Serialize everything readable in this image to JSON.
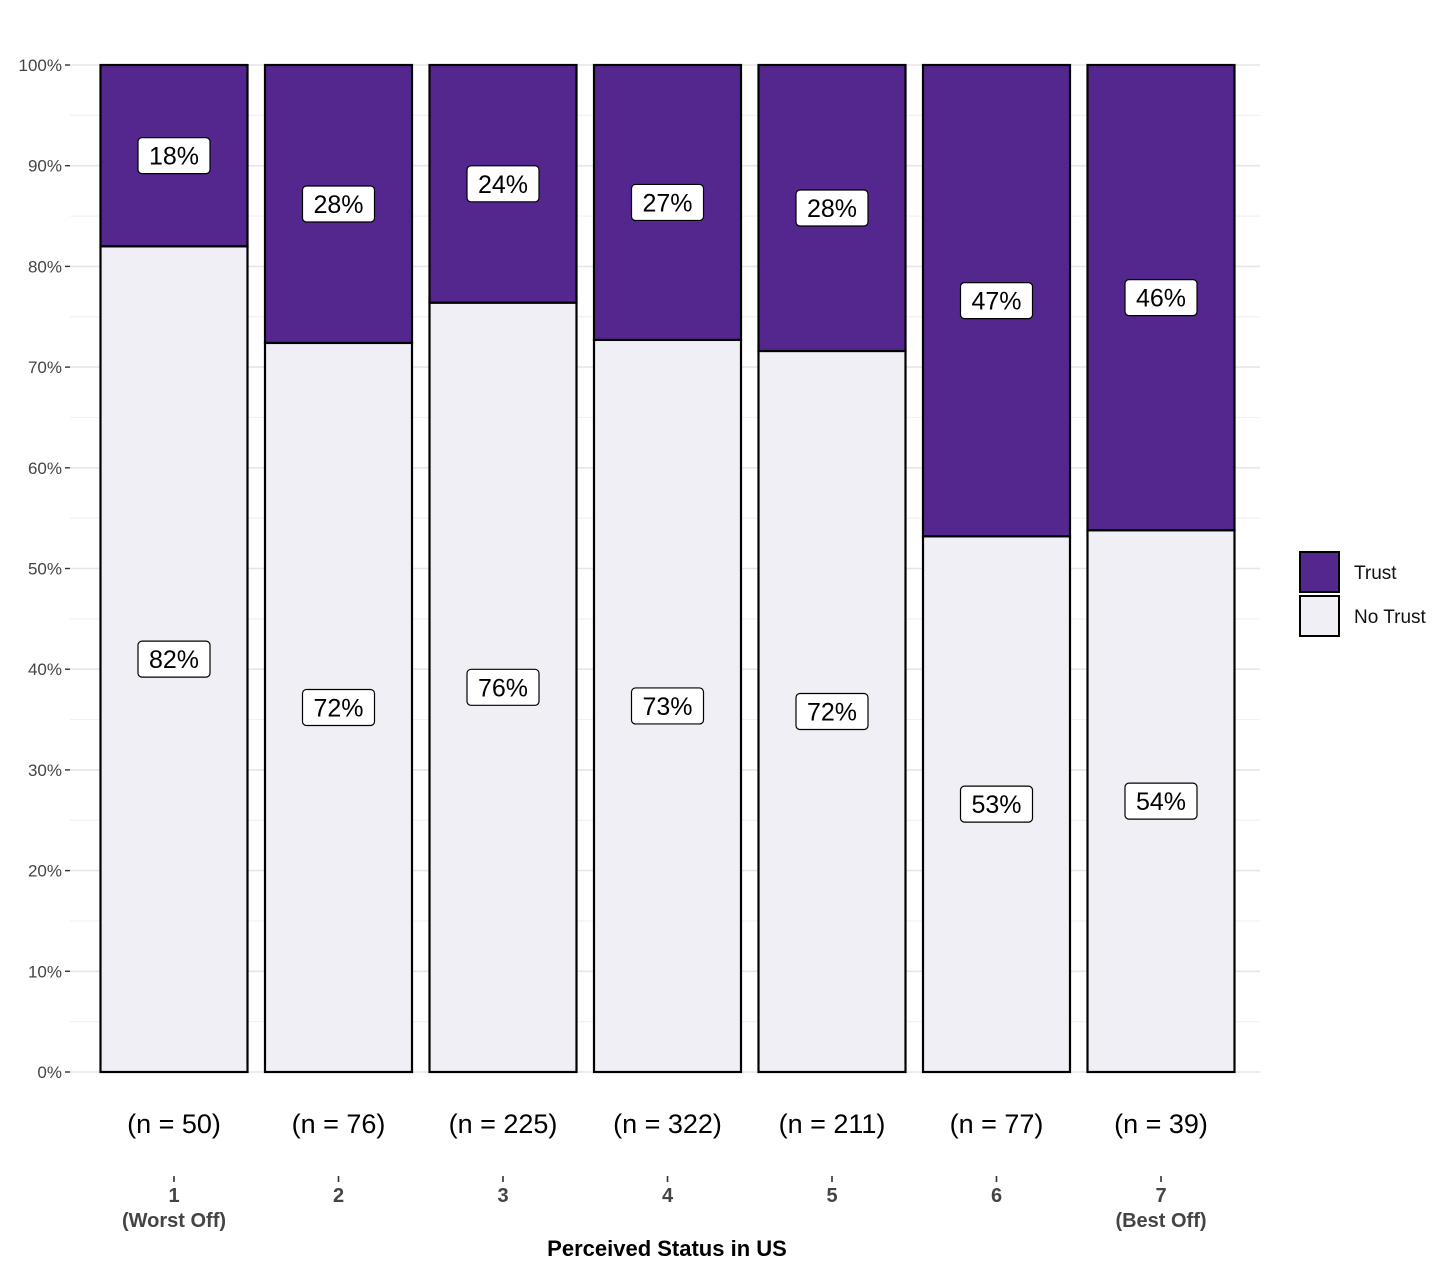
{
  "chart_data": {
    "type": "bar",
    "stacked": true,
    "normalized": true,
    "categories": [
      "1",
      "2",
      "3",
      "4",
      "5",
      "6",
      "7"
    ],
    "category_sublabels": [
      "(Worst Off)",
      "",
      "",
      "",
      "",
      "",
      "(Best Off)"
    ],
    "sample_sizes": [
      "(n = 50)",
      "(n = 76)",
      "(n = 225)",
      "(n = 322)",
      "(n = 211)",
      "(n = 77)",
      "(n = 39)"
    ],
    "series": [
      {
        "name": "No Trust",
        "color": "#f0eff5",
        "values": [
          82,
          72.4,
          76.4,
          72.7,
          71.6,
          53.2,
          53.8
        ],
        "labels": [
          "82%",
          "72%",
          "76%",
          "73%",
          "72%",
          "53%",
          "54%"
        ]
      },
      {
        "name": "Trust",
        "color": "#54278f",
        "values": [
          18,
          27.6,
          23.6,
          27.3,
          28.4,
          46.8,
          46.2
        ],
        "labels": [
          "18%",
          "28%",
          "24%",
          "27%",
          "28%",
          "47%",
          "46%"
        ]
      }
    ],
    "title": "",
    "xlabel": "Perceived Status in US",
    "ylabel": "",
    "ylim": [
      0,
      100
    ],
    "yticks": [
      "0%",
      "10%",
      "20%",
      "30%",
      "40%",
      "50%",
      "60%",
      "70%",
      "80%",
      "90%",
      "100%"
    ],
    "grid": true,
    "legend": {
      "position": "right",
      "entries": [
        "Trust",
        "No Trust"
      ]
    }
  }
}
